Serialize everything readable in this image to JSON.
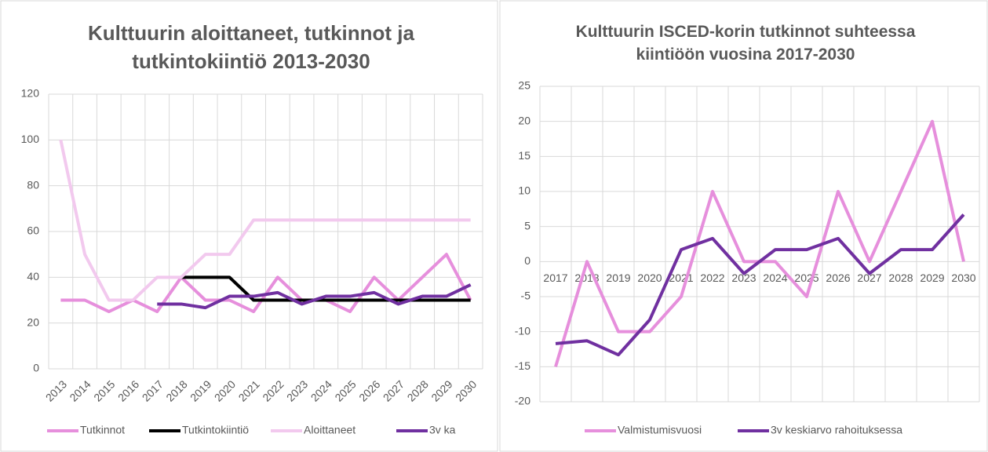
{
  "chart_data": [
    {
      "type": "line",
      "title": "Kulttuurin aloittaneet, tutkinnot ja tutkintokiintiö 2013-2030",
      "categories": [
        "2013",
        "2014",
        "2015",
        "2016",
        "2017",
        "2018",
        "2019",
        "2020",
        "2021",
        "2022",
        "2023",
        "2024",
        "2025",
        "2026",
        "2027",
        "2028",
        "2029",
        "2030"
      ],
      "series": [
        {
          "name": "Tutkinnot",
          "color": "#e68fdc",
          "values": [
            30,
            30,
            25,
            30,
            25,
            40,
            30,
            30,
            25,
            40,
            30,
            30,
            25,
            40,
            30,
            40,
            50,
            30
          ]
        },
        {
          "name": "Tutkintokiintiö",
          "color": "#000000",
          "values": [
            null,
            null,
            null,
            null,
            null,
            40,
            40,
            40,
            30,
            30,
            30,
            30,
            30,
            30,
            30,
            30,
            30,
            30
          ]
        },
        {
          "name": "Aloittaneet",
          "color": "#f2c9ee",
          "values": [
            100,
            50,
            30,
            30,
            40,
            40,
            50,
            50,
            65,
            65,
            65,
            65,
            65,
            65,
            65,
            65,
            65,
            65
          ]
        },
        {
          "name": "3v ka",
          "color": "#7030a0",
          "values": [
            null,
            null,
            null,
            null,
            28.3,
            28.3,
            26.7,
            31.7,
            31.7,
            33.3,
            28.3,
            31.7,
            31.7,
            33.3,
            28.3,
            31.7,
            31.7,
            36.7
          ]
        }
      ],
      "ylim": [
        0,
        120
      ],
      "yticks": [
        0,
        20,
        40,
        60,
        80,
        100,
        120
      ],
      "grid": true,
      "legend": "bottom"
    },
    {
      "type": "line",
      "title": "Kulttuurin ISCED-korin tutkinnot suhteessa kiintiöön vuosina 2017-2030",
      "categories": [
        "2017",
        "2018",
        "2019",
        "2020",
        "2021",
        "2022",
        "2023",
        "2024",
        "2025",
        "2026",
        "2027",
        "2028",
        "2029",
        "2030"
      ],
      "series": [
        {
          "name": "Valmistumisvuosi",
          "color": "#e68fdc",
          "values": [
            -15,
            0,
            -10,
            -10,
            -5,
            10,
            0,
            0,
            -5,
            10,
            0,
            10,
            20,
            0
          ]
        },
        {
          "name": "3v keskiarvo rahoituksessa",
          "color": "#7030a0",
          "values": [
            -11.7,
            -11.3,
            -13.3,
            -8.3,
            1.7,
            3.3,
            -1.7,
            1.7,
            1.7,
            3.3,
            -1.7,
            1.7,
            1.7,
            6.7
          ]
        }
      ],
      "ylim": [
        -20,
        25
      ],
      "yticks": [
        -20,
        -15,
        -10,
        -5,
        0,
        5,
        10,
        15,
        20,
        25
      ],
      "grid": true,
      "legend": "bottom"
    }
  ]
}
